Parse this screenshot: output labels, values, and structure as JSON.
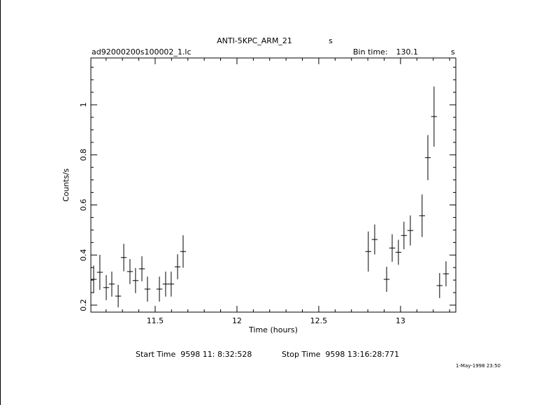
{
  "chart_data": {
    "type": "errorbar",
    "title": "ANTI-5KPC_ARM_21",
    "title_unit": "s",
    "file_name": "ad92000200s100002_1.lc",
    "bin_time_label": "Bin time:",
    "bin_time": 130.1,
    "bin_time_unit": "s",
    "x_label": "Time (hours)",
    "y_label": "Counts/s",
    "start_time": "Start Time  9598 11: 8:32:528",
    "stop_time": "Stop Time  9598 13:16:28:771",
    "date": "1-May-1998 23:50",
    "color": "#000000",
    "x": [
      11.124,
      11.162,
      11.201,
      11.235,
      11.274,
      11.308,
      11.346,
      11.38,
      11.419,
      11.453,
      11.526,
      11.564,
      11.598,
      11.637,
      11.671,
      12.803,
      12.842,
      12.915,
      12.949,
      12.987,
      13.021,
      13.06,
      13.132,
      13.167,
      13.205,
      13.239,
      13.278
    ],
    "values": [
      0.303,
      0.331,
      0.27,
      0.284,
      0.236,
      0.39,
      0.334,
      0.298,
      0.345,
      0.264,
      0.264,
      0.284,
      0.284,
      0.353,
      0.414,
      0.414,
      0.462,
      0.303,
      0.428,
      0.411,
      0.478,
      0.498,
      0.557,
      0.789,
      0.953,
      0.278,
      0.325
    ],
    "errors": [
      0.055,
      0.07,
      0.05,
      0.05,
      0.045,
      0.055,
      0.05,
      0.05,
      0.05,
      0.05,
      0.05,
      0.05,
      0.05,
      0.05,
      0.065,
      0.08,
      0.06,
      0.05,
      0.055,
      0.05,
      0.055,
      0.06,
      0.085,
      0.09,
      0.12,
      0.05,
      0.05
    ],
    "xerr": 0.018,
    "xlim": [
      11.107,
      13.338
    ],
    "ylim": [
      0.172,
      1.187
    ],
    "xticks": [
      11.5,
      12,
      12.5,
      13
    ],
    "yticks": [
      0.2,
      0.4,
      0.6,
      0.8,
      1
    ],
    "xminorticks": [
      11.2,
      11.3,
      11.4,
      11.6,
      11.7,
      11.8,
      11.9,
      12.1,
      12.2,
      12.3,
      12.4,
      12.6,
      12.7,
      12.8,
      12.9,
      13.1,
      13.2,
      13.3
    ],
    "yminorticks": [
      0.25,
      0.3,
      0.35,
      0.45,
      0.5,
      0.55,
      0.65,
      0.7,
      0.75,
      0.85,
      0.9,
      0.95,
      1.05,
      1.1,
      1.15
    ]
  }
}
